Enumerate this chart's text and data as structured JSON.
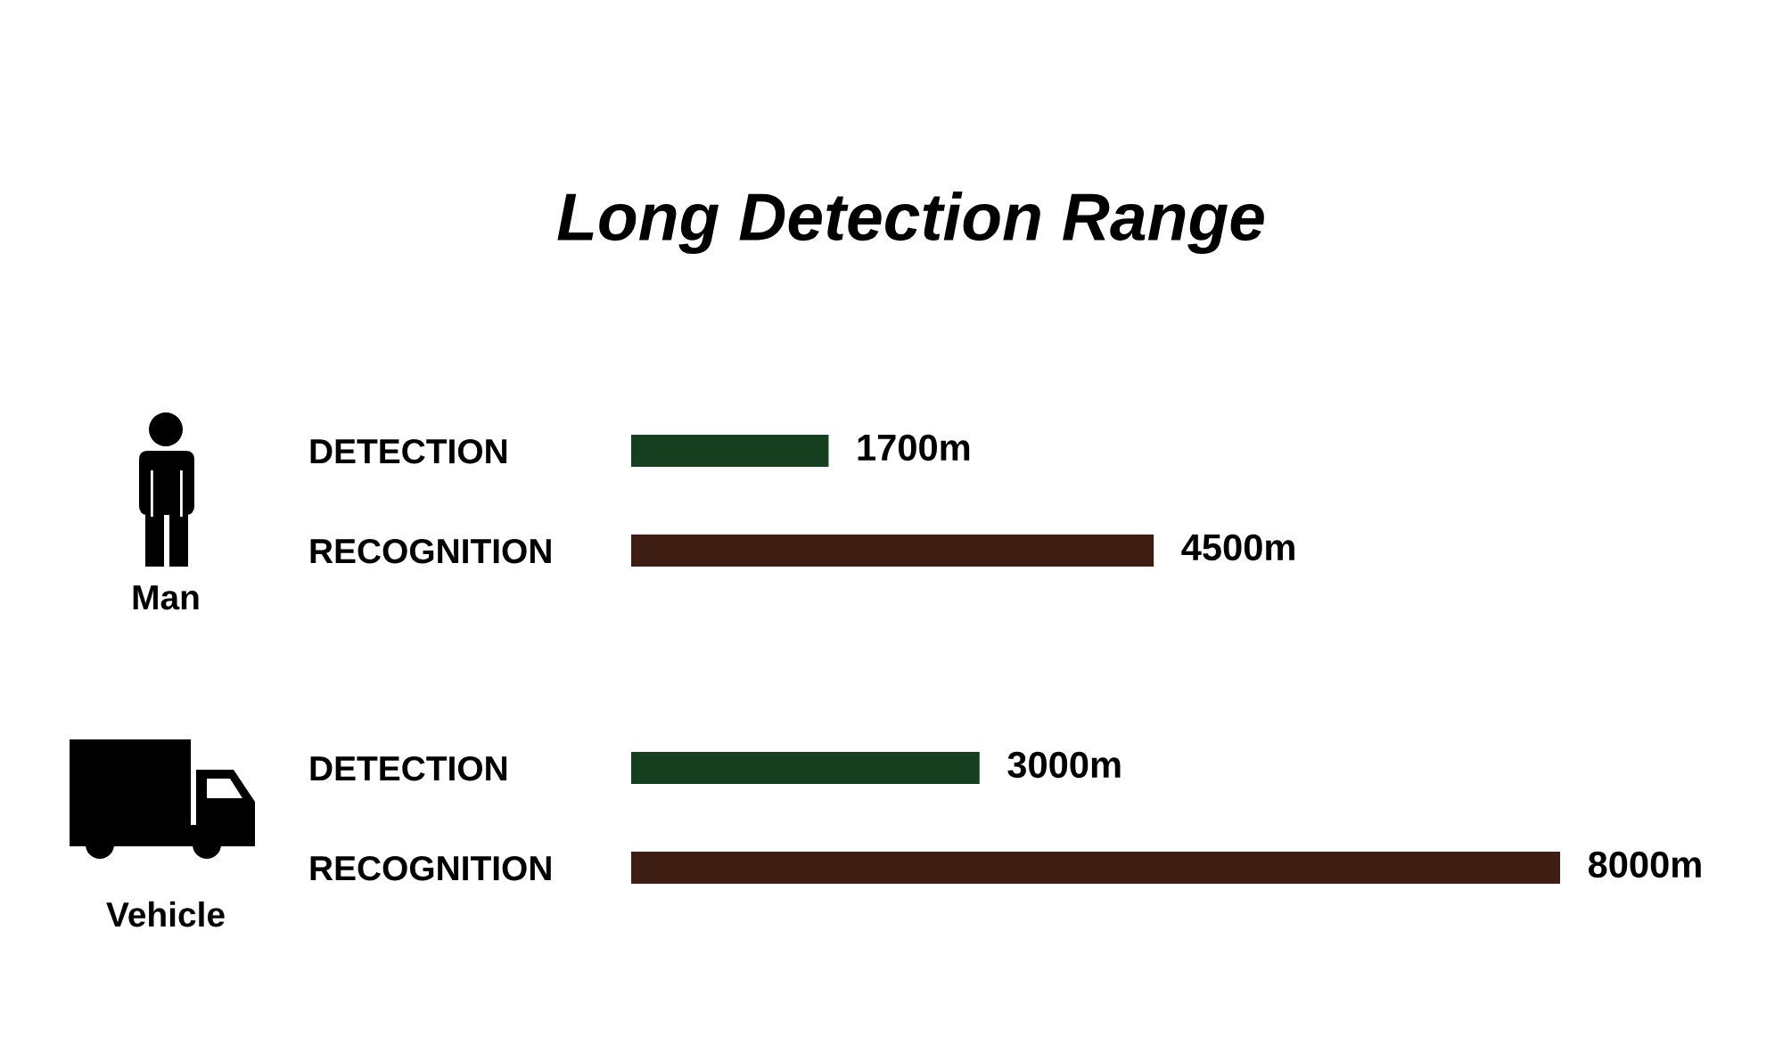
{
  "chart_data": [
    {
      "type": "bar",
      "orientation": "horizontal",
      "title": "Long Detection Range",
      "ylabel": "Man",
      "categories": [
        "DETECTION",
        "RECOGNITION"
      ],
      "values": [
        1700,
        4500
      ],
      "colors": [
        "#163f20",
        "#3e1d12"
      ],
      "value_labels": [
        "1700m",
        "4500m"
      ]
    },
    {
      "type": "bar",
      "orientation": "horizontal",
      "ylabel": "Vehicle",
      "categories": [
        "DETECTION",
        "RECOGNITION"
      ],
      "values": [
        3000,
        8000
      ],
      "colors": [
        "#163f20",
        "#3e1d12"
      ],
      "value_labels": [
        "3000m",
        "8000m"
      ]
    }
  ]
}
